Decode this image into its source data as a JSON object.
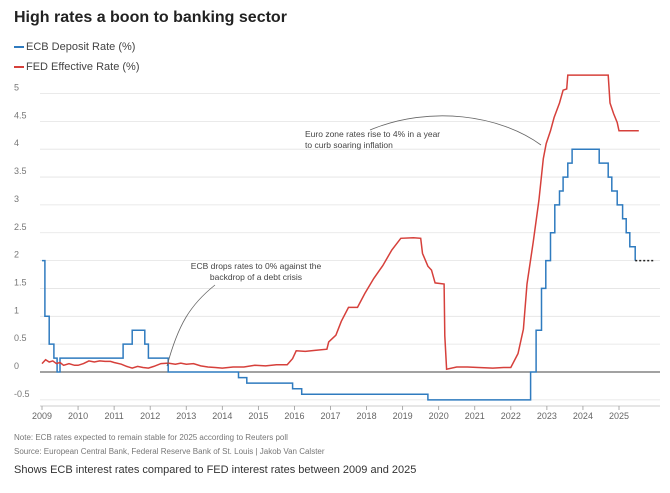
{
  "chart_data": {
    "type": "line",
    "title": "High rates a boon to banking sector",
    "xlabel": "",
    "ylabel": "",
    "xlim": [
      2008.95,
      2026.0
    ],
    "ylim": [
      -0.6,
      5.4
    ],
    "x_ticks": [
      "2009",
      "2010",
      "2011",
      "2012",
      "2013",
      "2014",
      "2015",
      "2016",
      "2017",
      "2018",
      "2019",
      "2020",
      "2021",
      "2022",
      "2023",
      "2024",
      "2025"
    ],
    "y_ticks": [
      "-0.5",
      "0",
      "0.5",
      "1",
      "1.5",
      "2",
      "2.5",
      "3",
      "3.5",
      "4",
      "4.5",
      "5"
    ],
    "series": [
      {
        "name": "ECB Deposit Rate (%)",
        "color": "#2f7bbf",
        "points": [
          [
            2009.0,
            2
          ],
          [
            2009.08,
            2
          ],
          [
            2009.08,
            1
          ],
          [
            2009.2,
            1
          ],
          [
            2009.2,
            0.5
          ],
          [
            2009.33,
            0.5
          ],
          [
            2009.33,
            0.25
          ],
          [
            2009.42,
            0.25
          ],
          [
            2009.42,
            0
          ],
          [
            2009.5,
            0
          ],
          [
            2009.5,
            0.25
          ],
          [
            2011.25,
            0.25
          ],
          [
            2011.25,
            0.5
          ],
          [
            2011.5,
            0.5
          ],
          [
            2011.5,
            0.75
          ],
          [
            2011.85,
            0.75
          ],
          [
            2011.85,
            0.5
          ],
          [
            2011.95,
            0.5
          ],
          [
            2011.95,
            0.25
          ],
          [
            2012.5,
            0.25
          ],
          [
            2012.5,
            0
          ],
          [
            2014.45,
            0
          ],
          [
            2014.45,
            -0.1
          ],
          [
            2014.68,
            -0.1
          ],
          [
            2014.68,
            -0.2
          ],
          [
            2015.95,
            -0.2
          ],
          [
            2015.95,
            -0.3
          ],
          [
            2016.2,
            -0.3
          ],
          [
            2016.2,
            -0.4
          ],
          [
            2019.7,
            -0.4
          ],
          [
            2019.7,
            -0.5
          ],
          [
            2022.55,
            -0.5
          ],
          [
            2022.55,
            0
          ],
          [
            2022.7,
            0
          ],
          [
            2022.7,
            0.75
          ],
          [
            2022.85,
            0.75
          ],
          [
            2022.85,
            1.5
          ],
          [
            2022.97,
            1.5
          ],
          [
            2022.97,
            2
          ],
          [
            2023.1,
            2
          ],
          [
            2023.1,
            2.5
          ],
          [
            2023.22,
            2.5
          ],
          [
            2023.22,
            3
          ],
          [
            2023.35,
            3
          ],
          [
            2023.35,
            3.25
          ],
          [
            2023.45,
            3.25
          ],
          [
            2023.45,
            3.5
          ],
          [
            2023.58,
            3.5
          ],
          [
            2023.58,
            3.75
          ],
          [
            2023.7,
            3.75
          ],
          [
            2023.7,
            4
          ],
          [
            2024.45,
            4
          ],
          [
            2024.45,
            3.75
          ],
          [
            2024.7,
            3.75
          ],
          [
            2024.7,
            3.5
          ],
          [
            2024.8,
            3.5
          ],
          [
            2024.8,
            3.25
          ],
          [
            2024.95,
            3.25
          ],
          [
            2024.95,
            3
          ],
          [
            2025.1,
            3
          ],
          [
            2025.1,
            2.75
          ],
          [
            2025.2,
            2.75
          ],
          [
            2025.2,
            2.5
          ],
          [
            2025.3,
            2.5
          ],
          [
            2025.3,
            2.25
          ],
          [
            2025.45,
            2.25
          ],
          [
            2025.45,
            2
          ]
        ],
        "projection": [
          [
            2025.45,
            2
          ],
          [
            2025.95,
            2
          ]
        ]
      },
      {
        "name": "FED Effective Rate (%)",
        "color": "#d6403b",
        "points": [
          [
            2009.0,
            0.15
          ],
          [
            2009.1,
            0.22
          ],
          [
            2009.2,
            0.18
          ],
          [
            2009.3,
            0.2
          ],
          [
            2009.4,
            0.15
          ],
          [
            2009.5,
            0.17
          ],
          [
            2009.6,
            0.12
          ],
          [
            2009.75,
            0.15
          ],
          [
            2009.9,
            0.12
          ],
          [
            2010.0,
            0.12
          ],
          [
            2010.15,
            0.15
          ],
          [
            2010.3,
            0.2
          ],
          [
            2010.45,
            0.18
          ],
          [
            2010.6,
            0.2
          ],
          [
            2010.75,
            0.19
          ],
          [
            2010.9,
            0.19
          ],
          [
            2011.0,
            0.17
          ],
          [
            2011.2,
            0.14
          ],
          [
            2011.35,
            0.1
          ],
          [
            2011.5,
            0.07
          ],
          [
            2011.65,
            0.1
          ],
          [
            2011.8,
            0.08
          ],
          [
            2011.95,
            0.07
          ],
          [
            2012.1,
            0.1
          ],
          [
            2012.3,
            0.15
          ],
          [
            2012.5,
            0.16
          ],
          [
            2012.7,
            0.14
          ],
          [
            2012.85,
            0.16
          ],
          [
            2013.0,
            0.14
          ],
          [
            2013.2,
            0.15
          ],
          [
            2013.4,
            0.11
          ],
          [
            2013.6,
            0.09
          ],
          [
            2013.8,
            0.08
          ],
          [
            2014.0,
            0.07
          ],
          [
            2014.3,
            0.09
          ],
          [
            2014.6,
            0.09
          ],
          [
            2014.9,
            0.12
          ],
          [
            2015.2,
            0.11
          ],
          [
            2015.5,
            0.13
          ],
          [
            2015.8,
            0.13
          ],
          [
            2015.95,
            0.24
          ],
          [
            2016.05,
            0.38
          ],
          [
            2016.3,
            0.37
          ],
          [
            2016.6,
            0.39
          ],
          [
            2016.9,
            0.41
          ],
          [
            2016.95,
            0.54
          ],
          [
            2017.15,
            0.66
          ],
          [
            2017.3,
            0.91
          ],
          [
            2017.5,
            1.16
          ],
          [
            2017.75,
            1.16
          ],
          [
            2017.95,
            1.41
          ],
          [
            2018.2,
            1.68
          ],
          [
            2018.45,
            1.91
          ],
          [
            2018.7,
            2.19
          ],
          [
            2018.95,
            2.4
          ],
          [
            2019.3,
            2.41
          ],
          [
            2019.5,
            2.4
          ],
          [
            2019.55,
            2.13
          ],
          [
            2019.7,
            1.9
          ],
          [
            2019.8,
            1.83
          ],
          [
            2019.9,
            1.6
          ],
          [
            2020.15,
            1.58
          ],
          [
            2020.17,
            0.65
          ],
          [
            2020.22,
            0.05
          ],
          [
            2020.5,
            0.09
          ],
          [
            2020.8,
            0.09
          ],
          [
            2021.1,
            0.08
          ],
          [
            2021.5,
            0.07
          ],
          [
            2021.8,
            0.08
          ],
          [
            2022.0,
            0.08
          ],
          [
            2022.2,
            0.33
          ],
          [
            2022.35,
            0.77
          ],
          [
            2022.45,
            1.58
          ],
          [
            2022.62,
            2.33
          ],
          [
            2022.78,
            3.08
          ],
          [
            2022.9,
            3.83
          ],
          [
            2022.98,
            4.1
          ],
          [
            2023.1,
            4.33
          ],
          [
            2023.2,
            4.57
          ],
          [
            2023.35,
            4.83
          ],
          [
            2023.45,
            5.06
          ],
          [
            2023.55,
            5.08
          ],
          [
            2023.58,
            5.33
          ],
          [
            2024.7,
            5.33
          ],
          [
            2024.75,
            4.83
          ],
          [
            2024.85,
            4.64
          ],
          [
            2024.95,
            4.48
          ],
          [
            2025.0,
            4.33
          ],
          [
            2025.55,
            4.33
          ]
        ]
      }
    ],
    "annotations": [
      {
        "lines": [
          "Euro zone rates rise to 4% in a year",
          "to curb soaring inflation"
        ]
      },
      {
        "lines": [
          "ECB drops rates to 0% against the",
          "backdrop of a debt crisis"
        ]
      }
    ]
  },
  "legend": [
    {
      "label": "ECB Deposit Rate (%)",
      "color": "#2f7bbf"
    },
    {
      "label": "FED Effective Rate (%)",
      "color": "#d6403b"
    }
  ],
  "footer": {
    "note": "Note: ECB rates expected to remain stable for 2025 according to Reuters poll",
    "source": "Source: European Central Bank, Federal Reserve Bank of St. Louis | Jakob Van Calster",
    "caption": "Shows ECB interest rates compared to FED interest rates between 2009 and 2025"
  }
}
